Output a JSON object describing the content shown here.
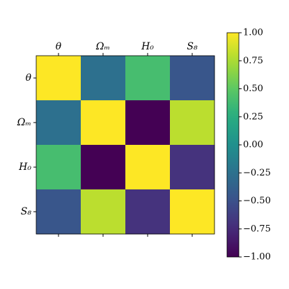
{
  "chart_data": {
    "type": "heatmap",
    "categories": [
      "θ",
      "Ωₘ",
      "H₀",
      "S₈"
    ],
    "values": [
      [
        1,
        -0.26,
        0.4,
        -0.46
      ],
      [
        -0.26,
        1,
        -1,
        0.8
      ],
      [
        0.4,
        -1,
        1,
        -0.7
      ],
      [
        -0.46,
        0.8,
        -0.7,
        1
      ]
    ],
    "colormap": "viridis",
    "clim": [
      -1,
      1
    ],
    "cticks": [
      {
        "value": -1,
        "label": "−1.00"
      },
      {
        "value": -0.75,
        "label": "−0.75"
      },
      {
        "value": -0.5,
        "label": "−0.50"
      },
      {
        "value": -0.25,
        "label": "−0.25"
      },
      {
        "value": 0,
        "label": "0.00"
      },
      {
        "value": 0.25,
        "label": "0.25"
      },
      {
        "value": 0.5,
        "label": "0.50"
      },
      {
        "value": 0.75,
        "label": "0.75"
      },
      {
        "value": 1,
        "label": "1.00"
      }
    ]
  }
}
